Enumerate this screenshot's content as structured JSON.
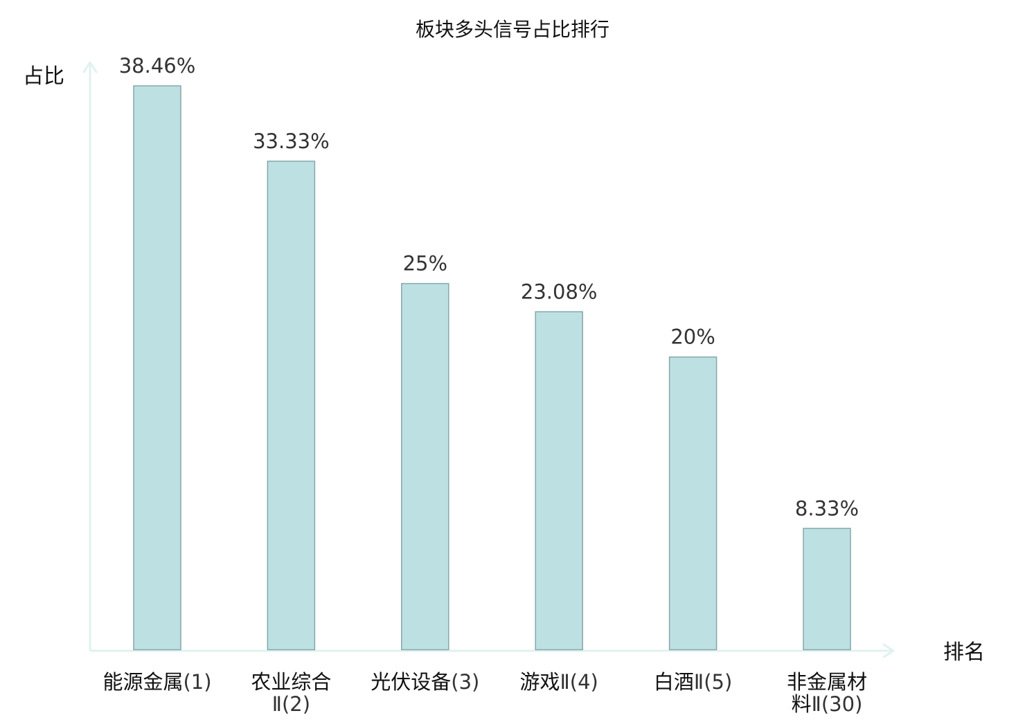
{
  "chart_data": {
    "type": "bar",
    "title": "板块多头信号占比排行",
    "xlabel": "排名",
    "ylabel": "占比",
    "ylim": [
      0,
      40
    ],
    "grid": false,
    "categories": [
      {
        "lines": [
          [
            {
              "t": "能源金属",
              "muted": false
            },
            {
              "t": "(1)",
              "muted": true
            }
          ]
        ],
        "highlight": false
      },
      {
        "lines": [
          [
            {
              "t": "农业综合",
              "muted": false
            }
          ],
          [
            {
              "t": "Ⅱ(2)",
              "muted": true
            }
          ]
        ],
        "highlight": false
      },
      {
        "lines": [
          [
            {
              "t": "光伏设备",
              "muted": false
            },
            {
              "t": "(3)",
              "muted": true
            }
          ]
        ],
        "highlight": false
      },
      {
        "lines": [
          [
            {
              "t": "游戏",
              "muted": false
            },
            {
              "t": "Ⅱ(4)",
              "muted": true
            }
          ]
        ],
        "highlight": false
      },
      {
        "lines": [
          [
            {
              "t": "白酒",
              "muted": false
            },
            {
              "t": "Ⅱ(5)",
              "muted": true
            }
          ]
        ],
        "highlight": false
      },
      {
        "lines": [
          [
            {
              "t": "非金属材",
              "muted": false
            }
          ],
          [
            {
              "t": "料",
              "muted": false
            },
            {
              "t": "Ⅱ(30)",
              "muted": true
            }
          ]
        ],
        "highlight": true
      }
    ],
    "values": [
      38.46,
      33.33,
      25,
      23.08,
      20,
      8.33
    ],
    "value_labels": [
      "38.46%",
      "33.33%",
      "25%",
      "23.08%",
      "20%",
      "8.33%"
    ]
  },
  "colors": {
    "bar_fill": "#bde0e2",
    "bar_stroke": "#86a7aa",
    "axis": "#e0f2ef",
    "highlight": "#e31a1c",
    "text": "#111111",
    "muted_text": "#333333"
  }
}
